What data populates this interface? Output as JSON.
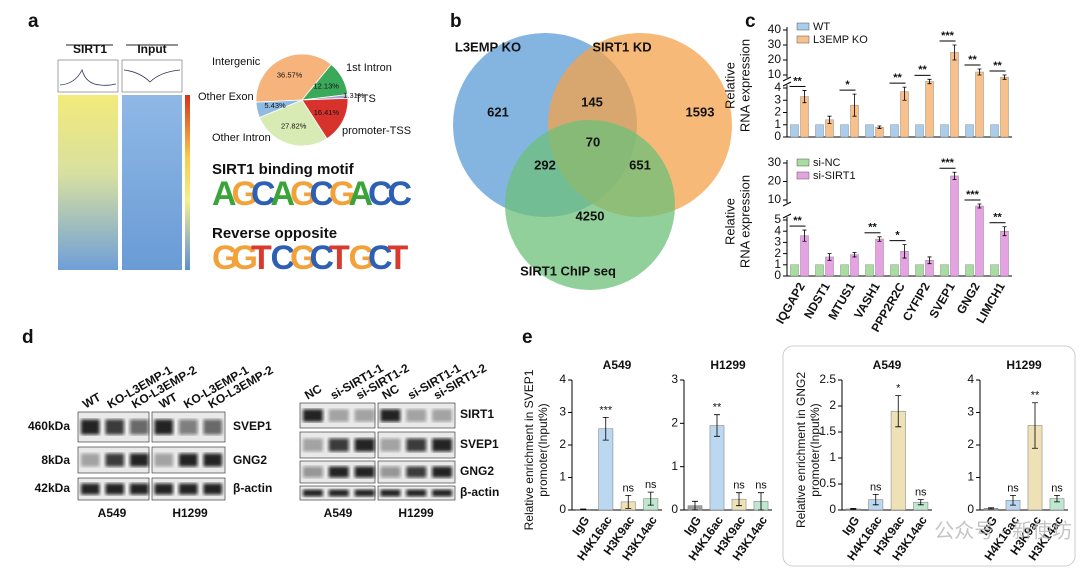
{
  "panel_labels": [
    "a",
    "b",
    "c",
    "d",
    "e"
  ],
  "a": {
    "heatmap_labels": [
      "SIRT1",
      "Input"
    ],
    "pie": {
      "type": "pie",
      "categories": [
        "Intergenic",
        "1st Intron",
        "TTS",
        "promoter-TSS",
        "Other Intron",
        "Other Exon"
      ],
      "values": [
        36.57,
        12.13,
        1.31,
        16.41,
        27.82,
        5.43
      ],
      "value_labels": [
        "36.57%",
        "12.13%",
        "1.31%",
        "16.41%",
        "27.82%",
        "5.43%"
      ],
      "colors": [
        "#f6b47c",
        "#3aa95a",
        "#a7a3d3",
        "#d8322c",
        "#d9ebb5",
        "#8fbbe3"
      ]
    },
    "motif_titles": [
      "SIRT1 binding motif",
      "Reverse opposite"
    ],
    "motifs": [
      [
        "A",
        "G",
        "C",
        "A",
        "G",
        "C",
        "G",
        "A",
        "C",
        "C"
      ],
      [
        "G",
        "G",
        "T",
        "C",
        "G",
        "C",
        "T",
        "G",
        "C",
        "T"
      ]
    ]
  },
  "b": {
    "type": "venn",
    "sets": [
      "L3EMP KO",
      "SIRT1 KD",
      "SIRT1 ChIP seq"
    ],
    "colors": [
      "#5b9bd5",
      "#f4a14a",
      "#6cc07a"
    ],
    "counts": [
      621,
      1593,
      4250,
      145,
      292,
      651,
      70
    ]
  },
  "c": {
    "y_title": [
      "Relative",
      "RNA expression"
    ],
    "categories": [
      "IQGAP2",
      "NDST1",
      "MTUS1",
      "VASH1",
      "PPP2R2C",
      "CYFIP2",
      "SVEP1",
      "GNG2",
      "LIMCH1"
    ],
    "charts": [
      {
        "type": "bar",
        "series": [
          {
            "name": "WT",
            "color": "#a9cdea",
            "values": [
              1,
              1,
              1,
              1,
              1,
              1,
              1,
              1,
              1
            ]
          },
          {
            "name": "L3EMP KO",
            "color": "#f8c18c",
            "values": [
              3.3,
              1.4,
              2.6,
              0.8,
              3.7,
              7,
              25,
              12,
              9
            ],
            "errors": [
              0.5,
              0.3,
              0.9,
              0.1,
              0.7,
              1,
              5,
              2,
              1
            ]
          }
        ],
        "significance": [
          "**",
          null,
          "*",
          null,
          "**",
          "**",
          "***",
          "**",
          "**"
        ],
        "ylim_lower": [
          0,
          4
        ],
        "yticks_lower": [
          0,
          1,
          2,
          3,
          4
        ],
        "ylim_upper": [
          10,
          40
        ],
        "yticks_upper": [
          10,
          20,
          30,
          40
        ]
      },
      {
        "type": "bar",
        "series": [
          {
            "name": "si-NC",
            "color": "#a8dca1",
            "values": [
              1,
              1,
              1,
              1,
              1,
              1,
              1,
              1,
              1
            ]
          },
          {
            "name": "si-SIRT1",
            "color": "#e6a3e4",
            "values": [
              3.6,
              1.7,
              1.9,
              3.3,
              2.2,
              1.4,
              23,
              8.5,
              4
            ],
            "errors": [
              0.5,
              0.3,
              0.2,
              0.2,
              0.6,
              0.3,
              2,
              0.5,
              0.4
            ]
          }
        ],
        "significance": [
          "**",
          null,
          null,
          "**",
          "*",
          null,
          "***",
          "***",
          "**"
        ],
        "ylim_lower": [
          0,
          5
        ],
        "yticks_lower": [
          0,
          1,
          2,
          3,
          4,
          5
        ],
        "ylim_upper": [
          10,
          30
        ],
        "yticks_upper": [
          10,
          20,
          30
        ]
      }
    ]
  },
  "d": {
    "left": {
      "lanes": [
        "WT",
        "KO-L3EMP-1",
        "KO-L3EMP-2",
        "WT",
        "KO-L3EMP-1",
        "KO-L3EMP-2"
      ],
      "proteins": [
        "SVEP1",
        "GNG2",
        "β-actin"
      ],
      "sizes": [
        "460kDa",
        "8kDa",
        "42kDa"
      ],
      "cell_lines": [
        "A549",
        "H1299"
      ]
    },
    "right": {
      "lanes": [
        "NC",
        "si-SIRT1-1",
        "si-SIRT1-2",
        "NC",
        "si-SIRT1-1",
        "si-SIRT1-2"
      ],
      "proteins": [
        "SIRT1",
        "SVEP1",
        "GNG2",
        "β-actin"
      ],
      "cell_lines": [
        "A549",
        "H1299"
      ]
    }
  },
  "e": {
    "y_titles": [
      [
        "Relative enrichment in SVEP1",
        "promoter(Input%)"
      ],
      [
        "Relative enrichment in GNG2",
        "promoter(Input%)"
      ]
    ],
    "charts": [
      {
        "type": "bar",
        "title": "A549",
        "categories": [
          "IgG",
          "H4K16ac",
          "H3K9ac",
          "H3K14ac"
        ],
        "values": [
          0.02,
          2.5,
          0.25,
          0.35
        ],
        "errors": [
          0.01,
          0.35,
          0.2,
          0.2
        ],
        "significance": [
          null,
          "***",
          "ns",
          "ns"
        ],
        "colors": [
          "#9e9e9e",
          "#bcd7f0",
          "#efe1b6",
          "#bfe6cf"
        ],
        "ylim": [
          0,
          4
        ],
        "yticks": [
          0,
          1,
          2,
          3,
          4
        ]
      },
      {
        "type": "bar",
        "title": "H1299",
        "categories": [
          "IgG",
          "H4K16ac",
          "H3K9ac",
          "H3K14ac"
        ],
        "values": [
          0.1,
          1.95,
          0.25,
          0.2
        ],
        "errors": [
          0.1,
          0.25,
          0.15,
          0.2
        ],
        "significance": [
          null,
          "**",
          "ns",
          "ns"
        ],
        "colors": [
          "#9e9e9e",
          "#bcd7f0",
          "#efe1b6",
          "#bfe6cf"
        ],
        "ylim": [
          0,
          3
        ],
        "yticks": [
          0,
          1,
          2,
          3
        ]
      },
      {
        "type": "bar",
        "title": "A549",
        "categories": [
          "IgG",
          "H4K16ac",
          "H3K9ac",
          "H3K14ac"
        ],
        "values": [
          0.02,
          0.2,
          1.9,
          0.15
        ],
        "errors": [
          0.01,
          0.1,
          0.3,
          0.05
        ],
        "significance": [
          null,
          "ns",
          "*",
          "ns"
        ],
        "colors": [
          "#9e9e9e",
          "#bcd7f0",
          "#efe1b6",
          "#bfe6cf"
        ],
        "ylim": [
          0,
          2.5
        ],
        "yticks": [
          0,
          0.5,
          1,
          1.5,
          2,
          2.5
        ]
      },
      {
        "type": "bar",
        "title": "H1299",
        "categories": [
          "IgG",
          "H4K16ac",
          "H3K9ac",
          "H3K14ac"
        ],
        "values": [
          0.05,
          0.3,
          2.6,
          0.35
        ],
        "errors": [
          0.02,
          0.15,
          0.7,
          0.1
        ],
        "significance": [
          null,
          "ns",
          "**",
          "ns"
        ],
        "colors": [
          "#9e9e9e",
          "#bcd7f0",
          "#efe1b6",
          "#bfe6cf"
        ],
        "ylim": [
          0,
          4
        ],
        "yticks": [
          0,
          1,
          2,
          3,
          4
        ]
      }
    ]
  },
  "watermark": "公众号 · 新使坊"
}
